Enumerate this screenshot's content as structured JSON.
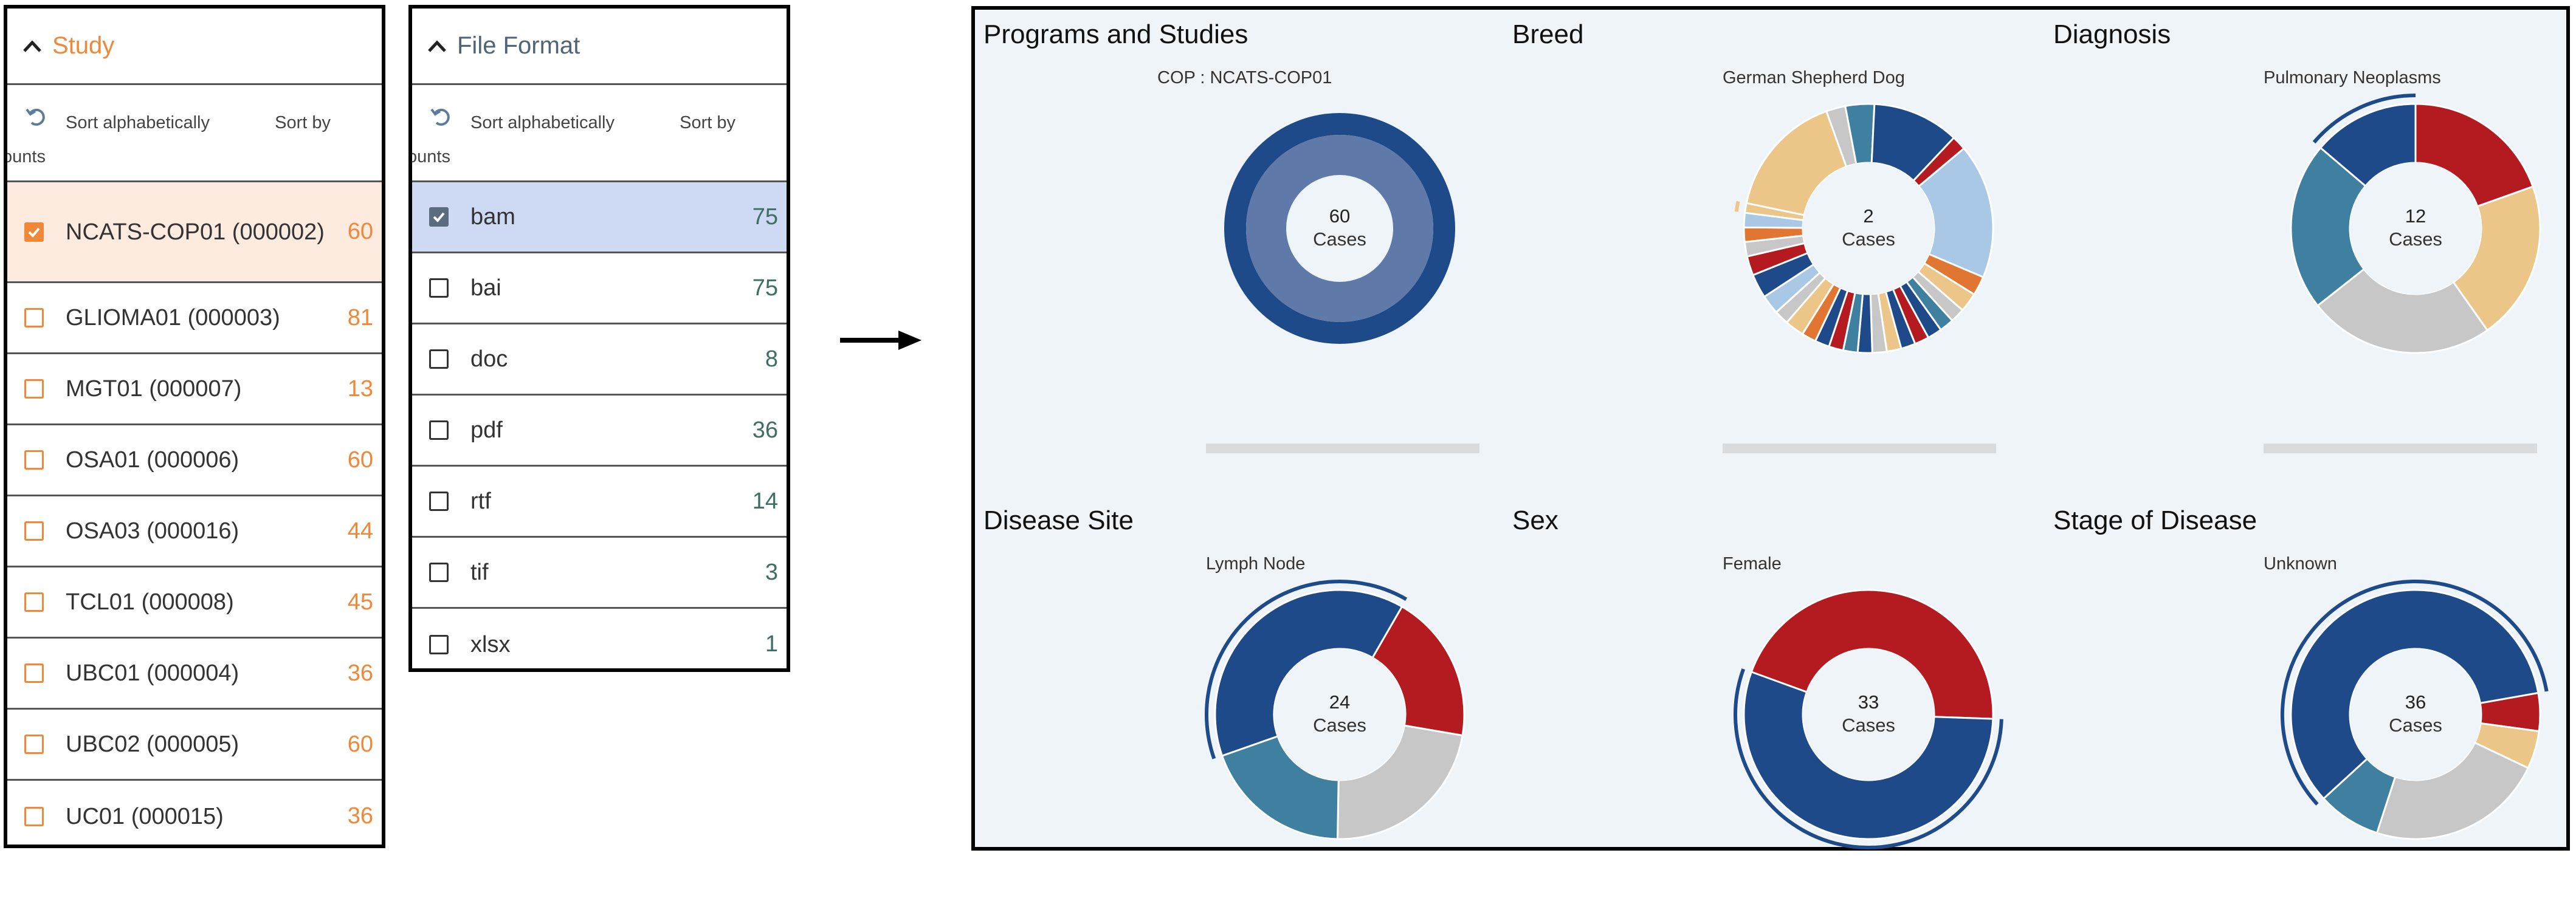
{
  "study_panel": {
    "title": "Study",
    "sort_alpha": "Sort alphabetically",
    "sort_count": "Sort by",
    "sort_count_clipped": "ounts",
    "items": [
      {
        "label": "NCATS-COP01 (000002)",
        "count": "60",
        "checked": true
      },
      {
        "label": "GLIOMA01 (000003)",
        "count": "81",
        "checked": false
      },
      {
        "label": "MGT01 (000007)",
        "count": "13",
        "checked": false
      },
      {
        "label": "OSA01 (000006)",
        "count": "60",
        "checked": false
      },
      {
        "label": "OSA03 (000016)",
        "count": "44",
        "checked": false
      },
      {
        "label": "TCL01 (000008)",
        "count": "45",
        "checked": false
      },
      {
        "label": "UBC01 (000004)",
        "count": "36",
        "checked": false
      },
      {
        "label": "UBC02 (000005)",
        "count": "60",
        "checked": false
      },
      {
        "label": "UC01 (000015)",
        "count": "36",
        "checked": false
      }
    ]
  },
  "format_panel": {
    "title": "File Format",
    "sort_alpha": "Sort alphabetically",
    "sort_count": "Sort by",
    "sort_count_clipped": "ounts",
    "items": [
      {
        "label": "bam",
        "count": "75",
        "checked": true
      },
      {
        "label": "bai",
        "count": "75",
        "checked": false
      },
      {
        "label": "doc",
        "count": "8",
        "checked": false
      },
      {
        "label": "pdf",
        "count": "36",
        "checked": false
      },
      {
        "label": "rtf",
        "count": "14",
        "checked": false
      },
      {
        "label": "tif",
        "count": "3",
        "checked": false
      },
      {
        "label": "xlsx",
        "count": "1",
        "checked": false
      }
    ]
  },
  "icons": {
    "collapse": "chevron-up-icon",
    "reset": "refresh-icon",
    "checked": "checkmark-icon",
    "arrow": "arrow-right-icon"
  },
  "colors": {
    "study_accent": "#f0883a",
    "dark_blue": "#1f4a8a",
    "mid_blue": "#5f7aa8",
    "red": "#b31b21",
    "tan": "#ecc589",
    "grey": "#c7c7c7",
    "teal": "#3f7fa0",
    "light_blue": "#a9c8e6",
    "orange": "#e17532",
    "dashboard_bg": "#eef4f7"
  },
  "chart_data": [
    {
      "type": "pie",
      "title": "Programs and Studies",
      "highlight": "COP : NCATS-COP01",
      "center_value": "60",
      "center_label": "Cases",
      "slices": [
        {
          "label": "COP : NCATS-COP01",
          "value": 60,
          "color": "#1f4a8a"
        }
      ]
    },
    {
      "type": "pie",
      "title": "Breed",
      "highlight": "German Shepherd Dog",
      "center_value": "2",
      "center_label": "Cases",
      "slices": [
        {
          "label": "",
          "value": 28,
          "color": "#a9c8e6"
        },
        {
          "label": "",
          "value": 4,
          "color": "#e17532"
        },
        {
          "label": "",
          "value": 4,
          "color": "#ecc589"
        },
        {
          "label": "",
          "value": 3,
          "color": "#c7c7c7"
        },
        {
          "label": "",
          "value": 3,
          "color": "#3f7fa0"
        },
        {
          "label": "",
          "value": 3,
          "color": "#1f4a8a"
        },
        {
          "label": "",
          "value": 3,
          "color": "#b31b21"
        },
        {
          "label": "",
          "value": 3,
          "color": "#1f4a8a"
        },
        {
          "label": "",
          "value": 3,
          "color": "#ecc589"
        },
        {
          "label": "",
          "value": 3,
          "color": "#c7c7c7"
        },
        {
          "label": "",
          "value": 3,
          "color": "#1f4a8a"
        },
        {
          "label": "",
          "value": 3,
          "color": "#3f7fa0"
        },
        {
          "label": "",
          "value": 3,
          "color": "#b31b21"
        },
        {
          "label": "",
          "value": 3,
          "color": "#1f4a8a"
        },
        {
          "label": "",
          "value": 3,
          "color": "#e17532"
        },
        {
          "label": "",
          "value": 4,
          "color": "#ecc589"
        },
        {
          "label": "",
          "value": 3,
          "color": "#c7c7c7"
        },
        {
          "label": "",
          "value": 4,
          "color": "#a9c8e6"
        },
        {
          "label": "",
          "value": 5,
          "color": "#1f4a8a"
        },
        {
          "label": "",
          "value": 4,
          "color": "#b31b21"
        },
        {
          "label": "",
          "value": 3,
          "color": "#c7c7c7"
        },
        {
          "label": "",
          "value": 3,
          "color": "#e17532"
        },
        {
          "label": "",
          "value": 3,
          "color": "#a9c8e6"
        },
        {
          "label": "German Shepherd Dog",
          "value": 2,
          "color": "#ecc589"
        },
        {
          "label": "",
          "value": 26,
          "color": "#ecc589"
        },
        {
          "label": "",
          "value": 4,
          "color": "#c7c7c7"
        },
        {
          "label": "",
          "value": 6,
          "color": "#3f7fa0"
        },
        {
          "label": "",
          "value": 18,
          "color": "#1f4a8a"
        },
        {
          "label": "",
          "value": 3,
          "color": "#b31b21"
        }
      ]
    },
    {
      "type": "pie",
      "title": "Diagnosis",
      "highlight": "Pulmonary Neoplasms",
      "center_value": "12",
      "center_label": "Cases",
      "slices": [
        {
          "label": "",
          "value": 17,
          "color": "#b31b21"
        },
        {
          "label": "",
          "value": 18,
          "color": "#ecc589"
        },
        {
          "label": "",
          "value": 21,
          "color": "#c7c7c7"
        },
        {
          "label": "",
          "value": 19,
          "color": "#3f7fa0"
        },
        {
          "label": "Pulmonary Neoplasms",
          "value": 12,
          "color": "#1f4a8a"
        }
      ]
    },
    {
      "type": "pie",
      "title": "Disease Site",
      "highlight": "Lymph Node",
      "center_value": "24",
      "center_label": "Cases",
      "slices": [
        {
          "label": "",
          "value": 12,
          "color": "#b31b21"
        },
        {
          "label": "",
          "value": 14,
          "color": "#c7c7c7"
        },
        {
          "label": "",
          "value": 12,
          "color": "#3f7fa0"
        },
        {
          "label": "Lymph Node",
          "value": 24,
          "color": "#1f4a8a"
        }
      ]
    },
    {
      "type": "pie",
      "title": "Sex",
      "highlight": "Female",
      "center_value": "33",
      "center_label": "Cases",
      "slices": [
        {
          "label": "",
          "value": 27,
          "color": "#b31b21"
        },
        {
          "label": "Female",
          "value": 33,
          "color": "#1f4a8a"
        }
      ]
    },
    {
      "type": "pie",
      "title": "Stage of Disease",
      "highlight": "Unknown",
      "center_value": "36",
      "center_label": "Cases",
      "slices": [
        {
          "label": "",
          "value": 3,
          "color": "#b31b21"
        },
        {
          "label": "",
          "value": 3,
          "color": "#ecc589"
        },
        {
          "label": "",
          "value": 14,
          "color": "#c7c7c7"
        },
        {
          "label": "",
          "value": 5,
          "color": "#3f7fa0"
        },
        {
          "label": "Unknown",
          "value": 36,
          "color": "#1f4a8a"
        }
      ]
    }
  ]
}
